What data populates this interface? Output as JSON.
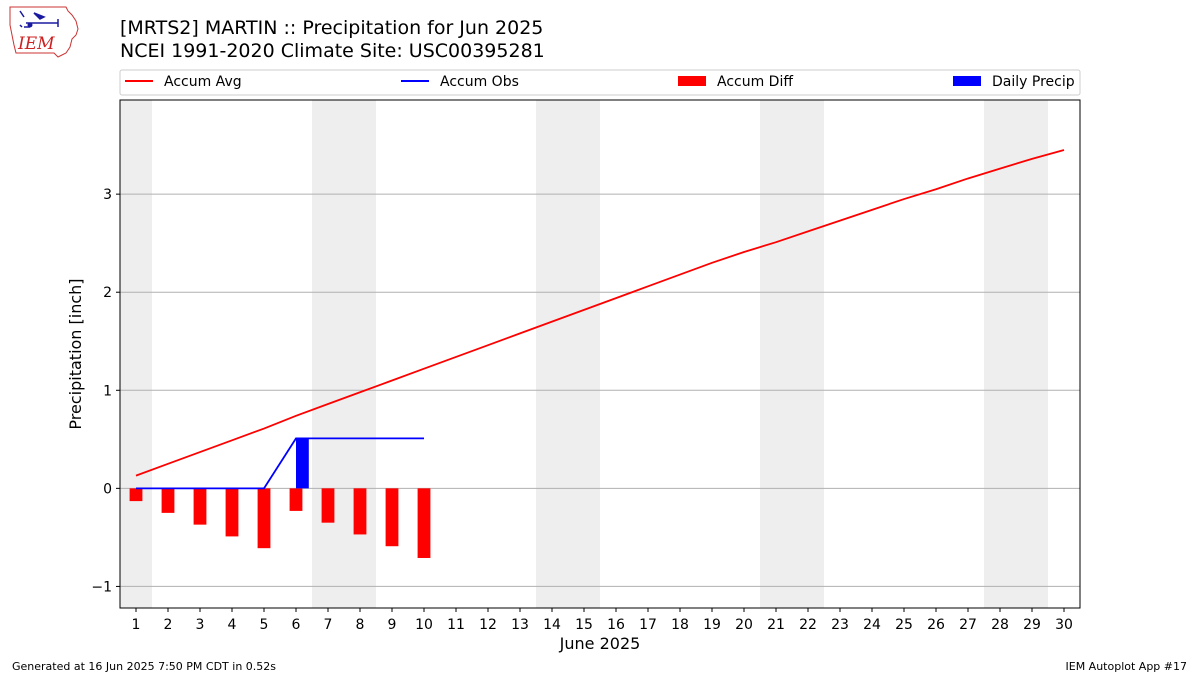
{
  "header": {
    "title_line1": "[MRTS2] MARTIN :: Precipitation for Jun 2025",
    "title_line2": "NCEI 1991-2020 Climate Site: USC00395281"
  },
  "logo": {
    "text": "IEM"
  },
  "footer": {
    "left": "Generated at 16 Jun 2025 7:50 PM CDT in 0.52s",
    "right": "IEM Autoplot App #17"
  },
  "colors": {
    "avg": "#ff0000",
    "obs": "#0000ff",
    "diff": "#ff0000",
    "daily": "#0000ff",
    "weekend": "#eeeeee",
    "grid": "#b0b0b0"
  },
  "chart_data": {
    "type": "line",
    "xlabel": "June 2025",
    "ylabel": "Precipitation [inch]",
    "xlim": [
      0.5,
      30.5
    ],
    "ylim": [
      -1.22,
      3.96
    ],
    "xticks": [
      1,
      2,
      3,
      4,
      5,
      6,
      7,
      8,
      9,
      10,
      11,
      12,
      13,
      14,
      15,
      16,
      17,
      18,
      19,
      20,
      21,
      22,
      23,
      24,
      25,
      26,
      27,
      28,
      29,
      30
    ],
    "yticks": [
      -1,
      0,
      1,
      2,
      3
    ],
    "ytick_labels": [
      "−1",
      "0",
      "1",
      "2",
      "3"
    ],
    "grid": "horizontal",
    "legend_position": "top",
    "legend": [
      "Accum Avg",
      "Accum Obs",
      "Accum Diff",
      "Daily Precip"
    ],
    "weekend_bands": [
      [
        0.5,
        1.5
      ],
      [
        6.5,
        8.5
      ],
      [
        13.5,
        15.5
      ],
      [
        20.5,
        22.5
      ],
      [
        27.5,
        29.5
      ]
    ],
    "series": [
      {
        "name": "Accum Avg",
        "type": "line",
        "x": [
          1,
          2,
          3,
          4,
          5,
          6,
          7,
          8,
          9,
          10,
          11,
          12,
          13,
          14,
          15,
          16,
          17,
          18,
          19,
          20,
          21,
          22,
          23,
          24,
          25,
          26,
          27,
          28,
          29,
          30
        ],
        "values": [
          0.13,
          0.25,
          0.37,
          0.49,
          0.61,
          0.74,
          0.86,
          0.98,
          1.1,
          1.22,
          1.34,
          1.46,
          1.58,
          1.7,
          1.82,
          1.94,
          2.06,
          2.18,
          2.3,
          2.41,
          2.51,
          2.62,
          2.73,
          2.84,
          2.95,
          3.05,
          3.16,
          3.26,
          3.36,
          3.45
        ]
      },
      {
        "name": "Accum Obs",
        "type": "line",
        "x": [
          1,
          2,
          3,
          4,
          5,
          6,
          7,
          8,
          9,
          10
        ],
        "values": [
          0,
          0,
          0,
          0,
          0,
          0.51,
          0.51,
          0.51,
          0.51,
          0.51
        ]
      },
      {
        "name": "Accum Diff",
        "type": "bar",
        "x": [
          1,
          2,
          3,
          4,
          5,
          6,
          7,
          8,
          9,
          10
        ],
        "values": [
          -0.13,
          -0.25,
          -0.37,
          -0.49,
          -0.61,
          -0.23,
          -0.35,
          -0.47,
          -0.59,
          -0.71
        ]
      },
      {
        "name": "Daily Precip",
        "type": "bar",
        "x": [
          1,
          2,
          3,
          4,
          5,
          6,
          7,
          8,
          9,
          10
        ],
        "values": [
          0,
          0,
          0,
          0,
          0,
          0.51,
          0,
          0,
          0,
          0
        ]
      }
    ]
  }
}
